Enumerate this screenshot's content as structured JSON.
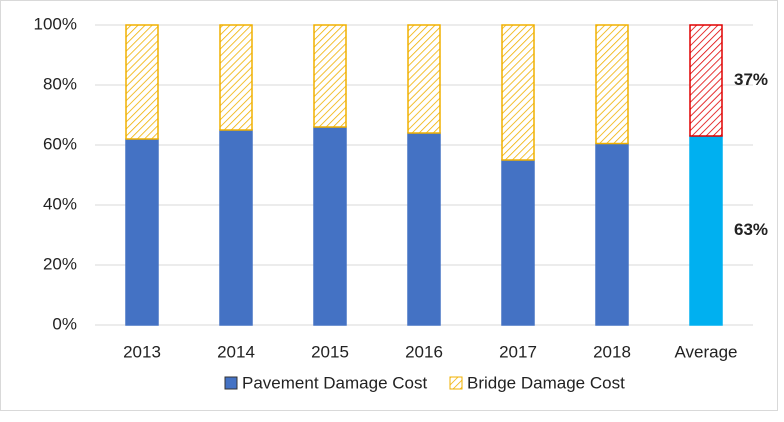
{
  "chart_data": {
    "type": "stacked_bar",
    "categories": [
      "2013",
      "2014",
      "2015",
      "2016",
      "2017",
      "2018",
      "Average"
    ],
    "series": [
      {
        "name": "Pavement Damage Cost",
        "color": "#4472c4",
        "colors": [
          "#4472c4",
          "#4472c4",
          "#4472c4",
          "#4472c4",
          "#4472c4",
          "#4472c4",
          "#00b0f0"
        ],
        "values": [
          62,
          65,
          66,
          64,
          55,
          60.5,
          63
        ],
        "value_labels": [
          null,
          null,
          null,
          null,
          null,
          null,
          "63%"
        ]
      },
      {
        "name": "Bridge Damage Cost",
        "color": "#f0b000",
        "pattern": "hatch",
        "colors": [
          "#f0b000",
          "#f0b000",
          "#f0b000",
          "#f0b000",
          "#f0b000",
          "#f0b000",
          "#e00000"
        ],
        "values": [
          38,
          35,
          34,
          36,
          45,
          39.5,
          37
        ],
        "value_labels": [
          null,
          null,
          null,
          null,
          null,
          null,
          "37%"
        ]
      }
    ],
    "ylim": [
      0,
      100
    ],
    "yticks": [
      {
        "value": 0,
        "label": "0%"
      },
      {
        "value": 20,
        "label": "20%"
      },
      {
        "value": 40,
        "label": "40%"
      },
      {
        "value": 60,
        "label": "60%"
      },
      {
        "value": 80,
        "label": "80%"
      },
      {
        "value": 100,
        "label": "100%"
      }
    ],
    "grid": true,
    "legend": "bottom"
  }
}
